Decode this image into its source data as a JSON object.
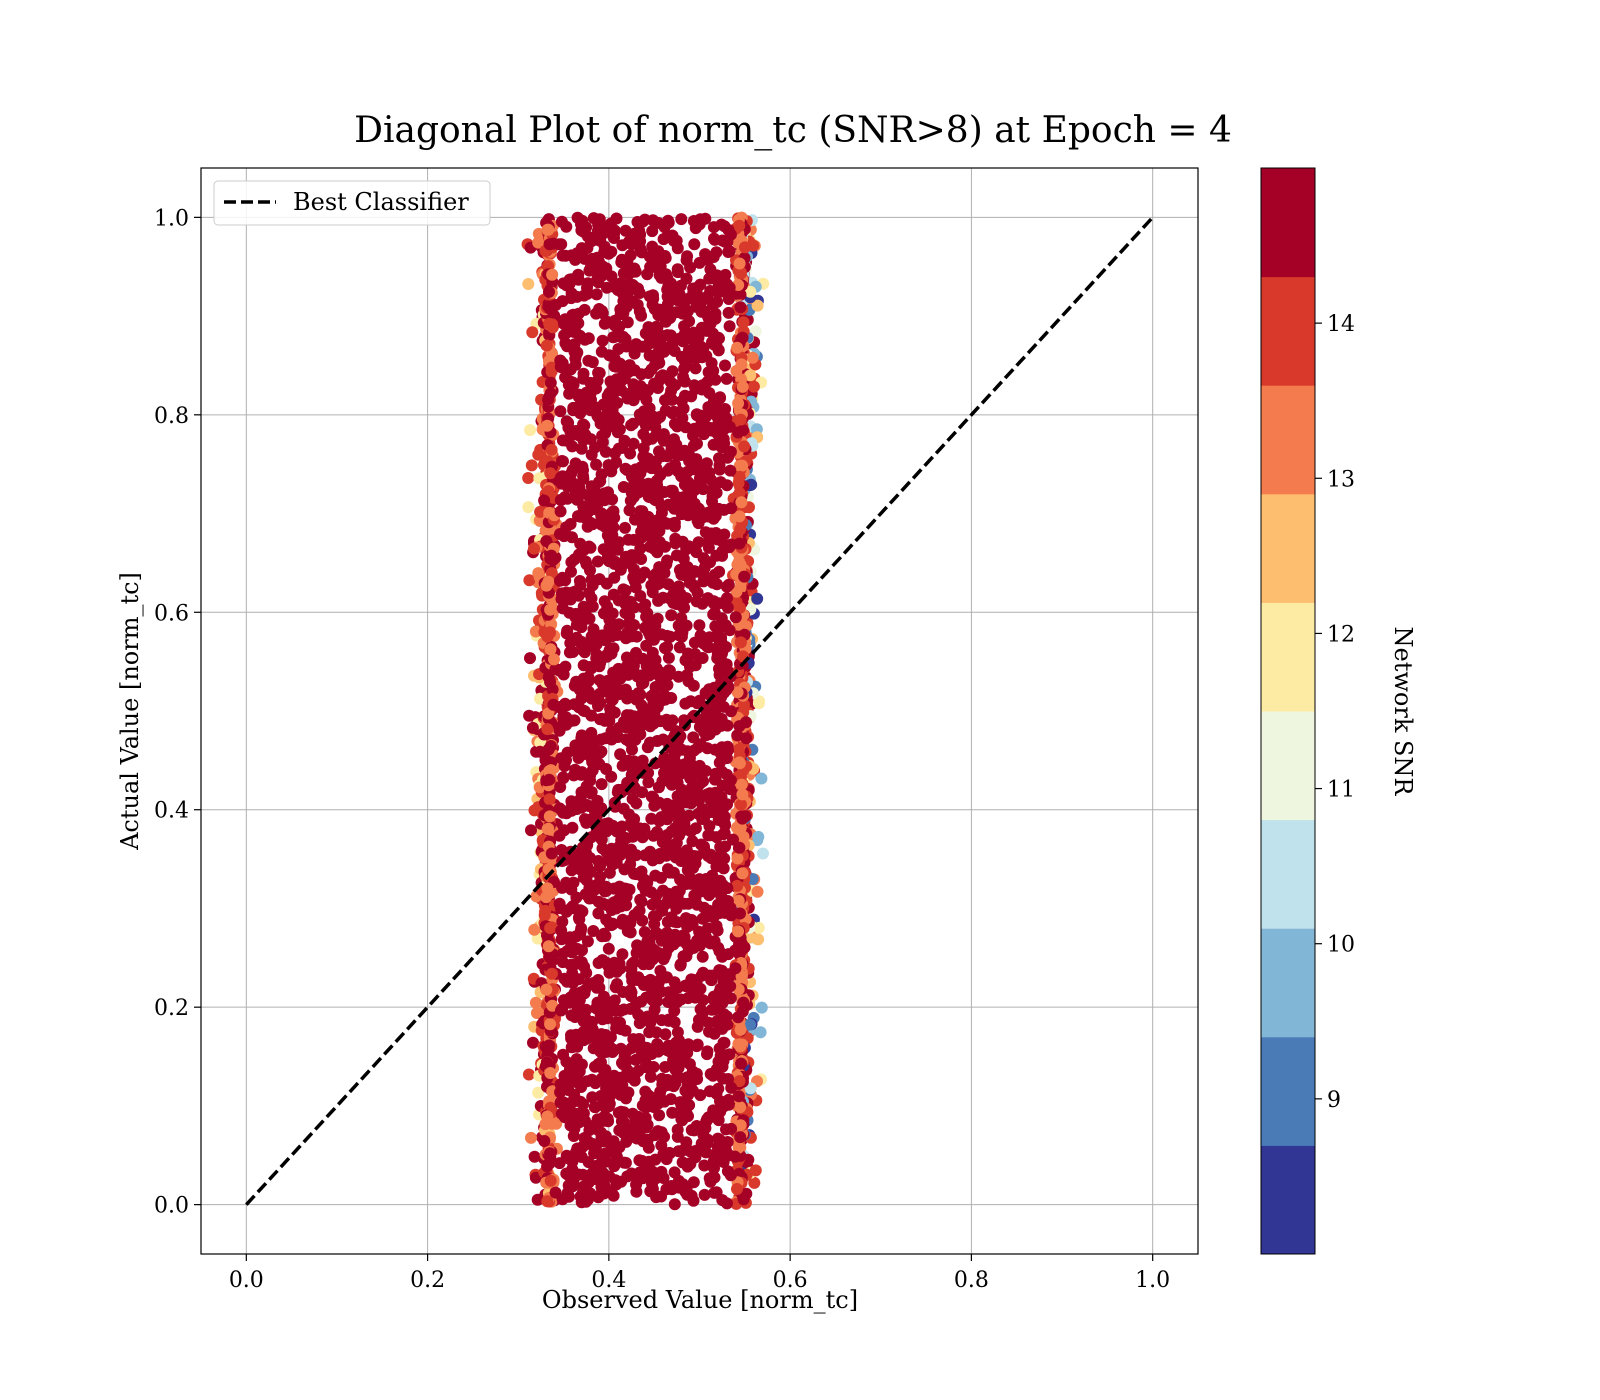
{
  "chart_data": {
    "type": "scatter",
    "title": "Diagonal Plot of norm_tc (SNR>8) at Epoch = 4",
    "xlabel": "Observed Value [norm_tc]",
    "ylabel": "Actual Value [norm_tc]",
    "xlim": [
      -0.05,
      1.05
    ],
    "ylim": [
      -0.05,
      1.05
    ],
    "xticks": [
      "0.0",
      "0.2",
      "0.4",
      "0.6",
      "0.8",
      "1.0"
    ],
    "yticks": [
      "0.0",
      "0.2",
      "0.4",
      "0.6",
      "0.8",
      "1.0"
    ],
    "grid": true,
    "legend": {
      "placement": "top-left",
      "entries": [
        {
          "label": "Best Classifier",
          "style": "dashed",
          "color": "#000000"
        }
      ]
    },
    "reference_line": {
      "x": [
        0.0,
        1.0
      ],
      "y": [
        0.0,
        1.0
      ]
    },
    "cluster": {
      "x_range_core": [
        0.335,
        0.545
      ],
      "x_range_outer": [
        0.265,
        0.61
      ],
      "y_range": [
        0.0,
        1.0
      ]
    },
    "colorbar": {
      "label": "Network SNR",
      "range": [
        8.0,
        15.0
      ],
      "ticks": [
        "9",
        "10",
        "11",
        "12",
        "13",
        "14"
      ],
      "bins": [
        {
          "from": 8.0,
          "to": 8.7,
          "color": "#313695"
        },
        {
          "from": 8.7,
          "to": 9.4,
          "color": "#4a7bb7"
        },
        {
          "from": 9.4,
          "to": 10.1,
          "color": "#82b6d6"
        },
        {
          "from": 10.1,
          "to": 10.8,
          "color": "#c0e2ec"
        },
        {
          "from": 10.8,
          "to": 11.5,
          "color": "#eef6e0"
        },
        {
          "from": 11.5,
          "to": 12.2,
          "color": "#fdeba4"
        },
        {
          "from": 12.2,
          "to": 12.9,
          "color": "#fdbe70"
        },
        {
          "from": 12.9,
          "to": 13.6,
          "color": "#f37b4d"
        },
        {
          "from": 13.6,
          "to": 14.3,
          "color": "#d8392b"
        },
        {
          "from": 14.3,
          "to": 15.0,
          "color": "#a50026"
        }
      ]
    }
  }
}
